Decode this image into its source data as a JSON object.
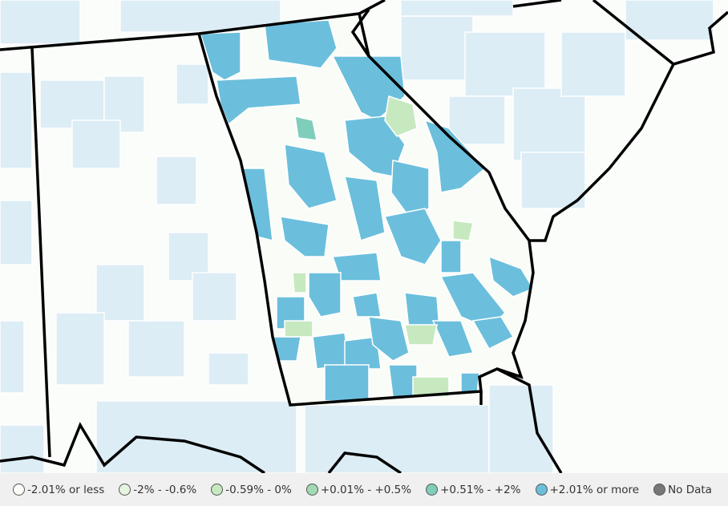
{
  "legend": {
    "items": [
      {
        "label": "-2.01% or less",
        "color": "#fbfdf9"
      },
      {
        "label": "-2% - -0.6%",
        "color": "#e5f5e0"
      },
      {
        "label": "-0.59% - 0%",
        "color": "#c7e9c0"
      },
      {
        "label": "+0.01% - +0.5%",
        "color": "#a1dab4"
      },
      {
        "label": "+0.51% - +2%",
        "color": "#7fcdbb"
      },
      {
        "label": "+2.01% or more",
        "color": "#6bbfdc"
      },
      {
        "label": "No Data",
        "color": "#777777"
      }
    ]
  }
}
